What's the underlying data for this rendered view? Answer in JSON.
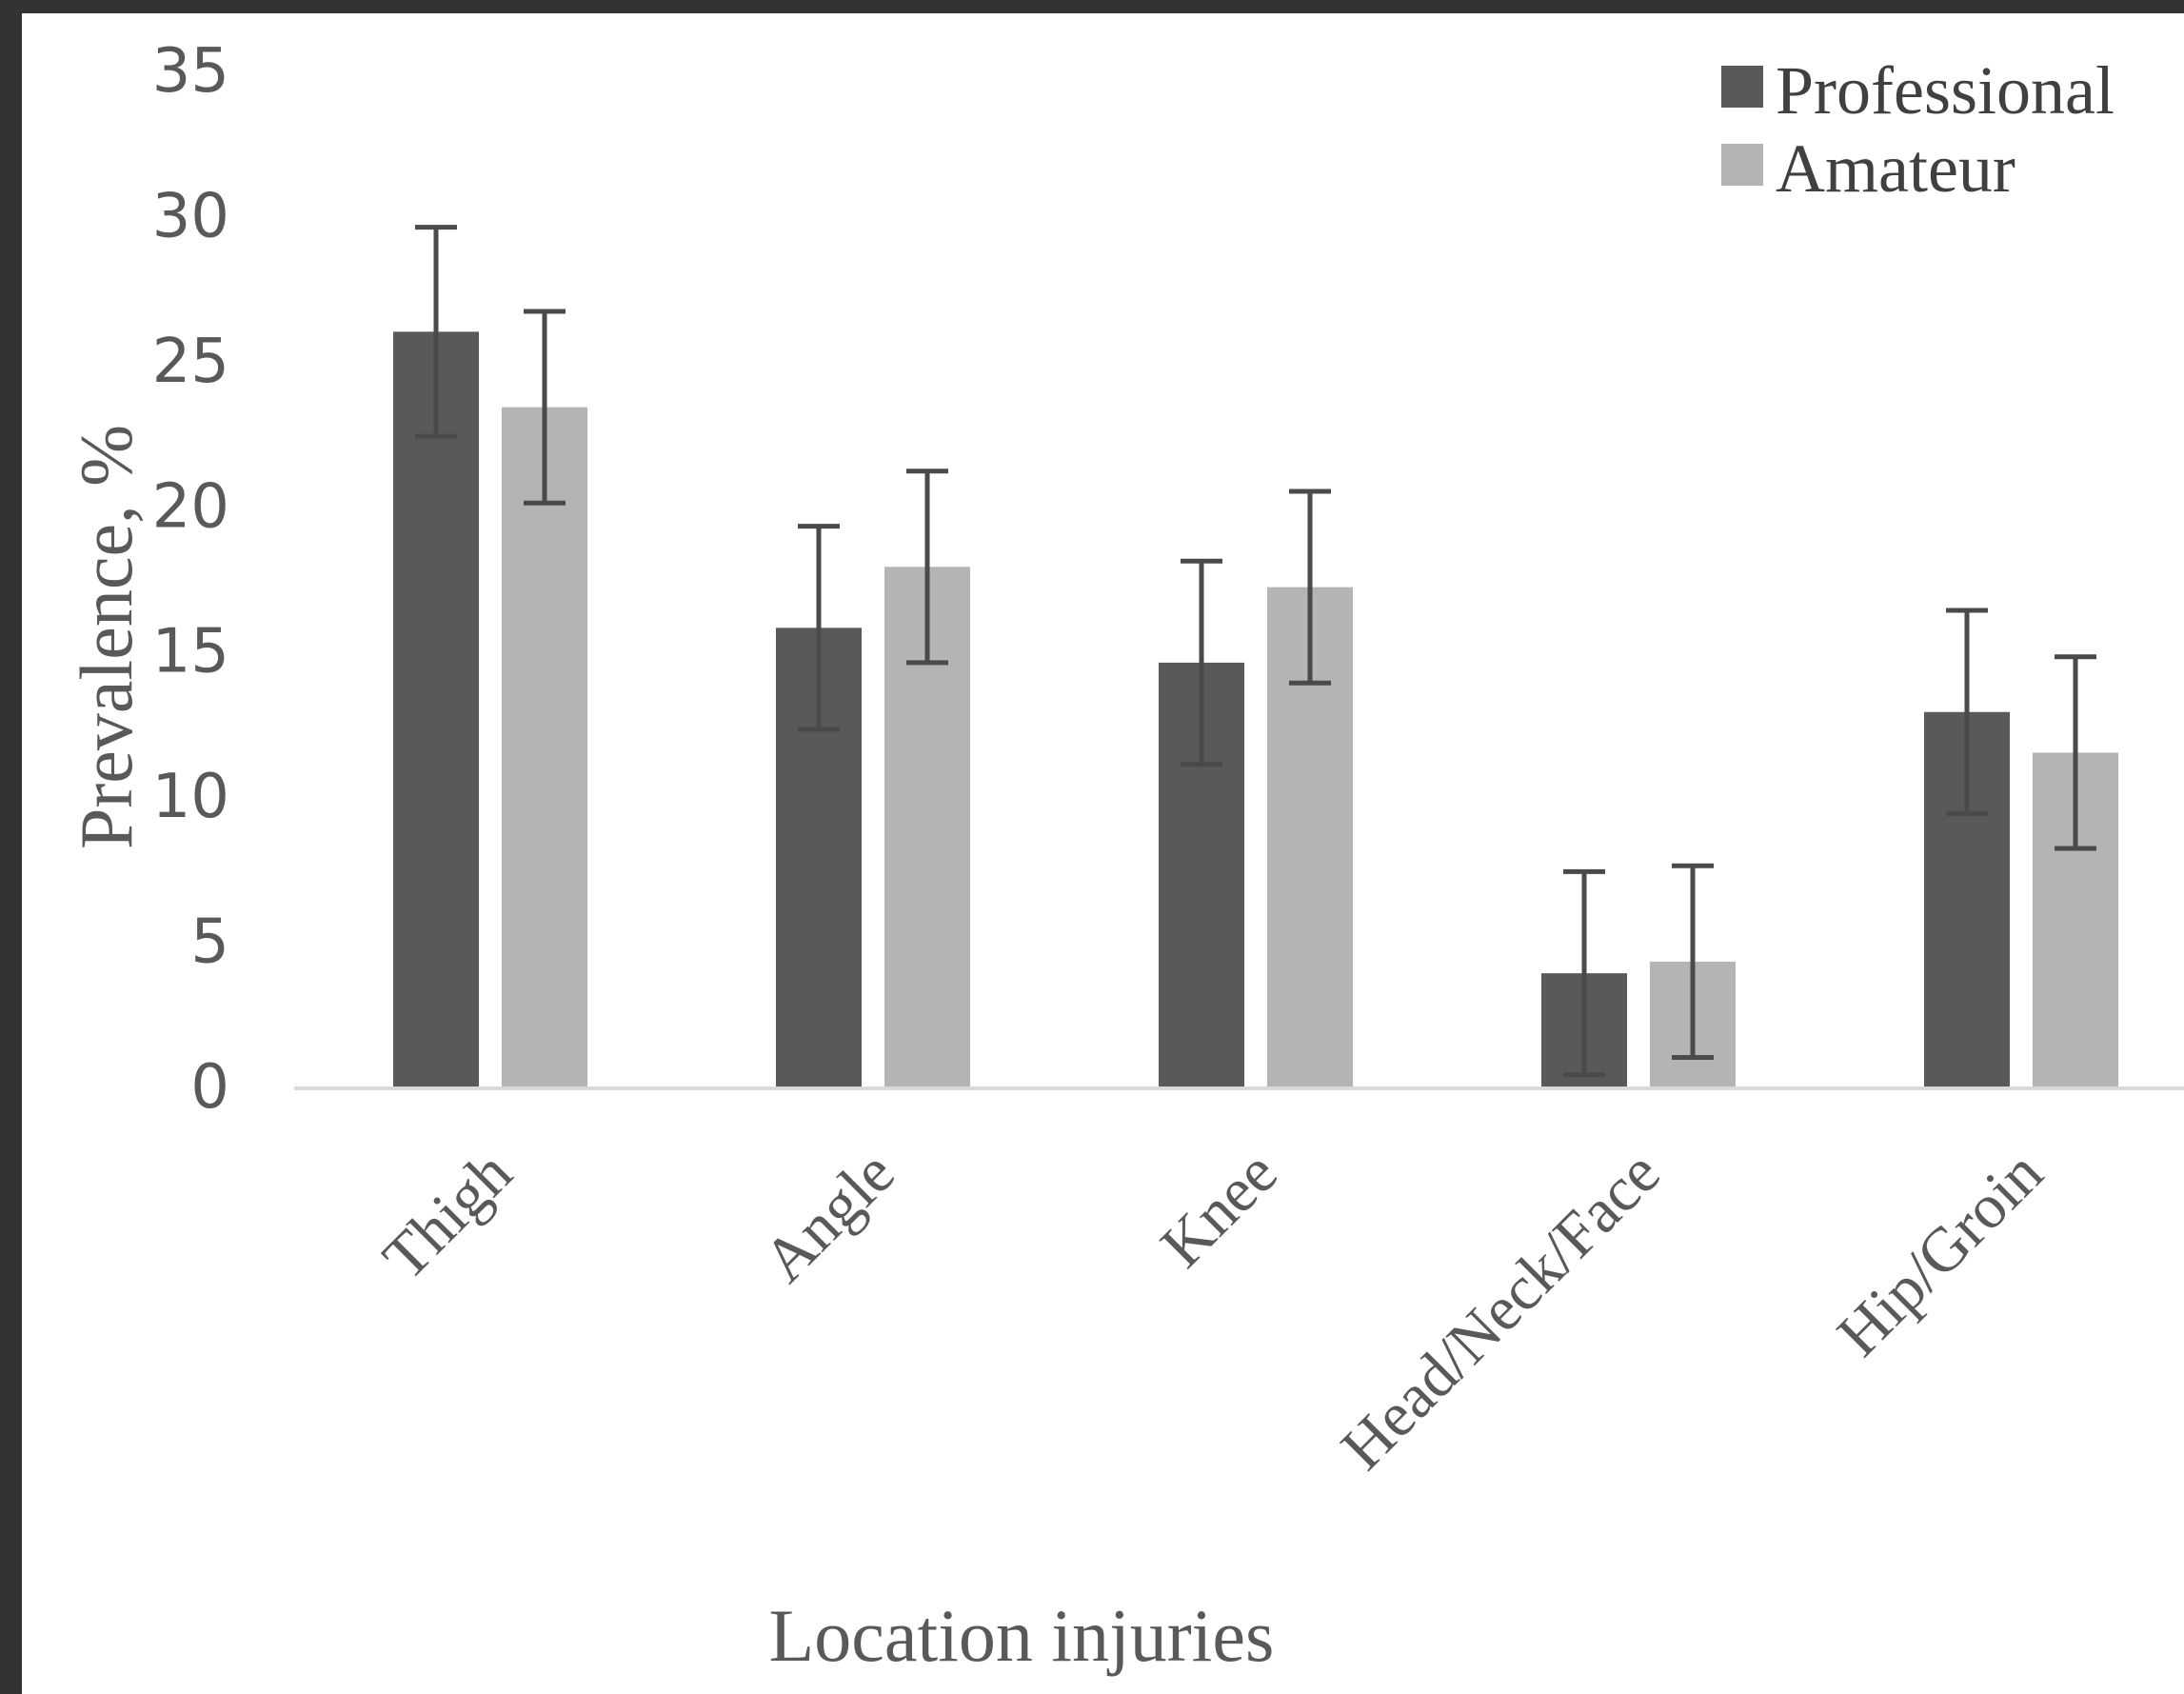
{
  "chart_data": {
    "type": "bar",
    "title": "",
    "xlabel": "Location injuries",
    "ylabel": "Prevalence, %",
    "ylim": [
      0,
      35
    ],
    "yticks": [
      "0",
      "5",
      "10",
      "15",
      "20",
      "25",
      "30",
      "35"
    ],
    "categories": [
      "Thigh",
      "Angle",
      "Knee",
      "Head/Neck/Face",
      "Hip/Groin"
    ],
    "series": [
      {
        "name": "Professional",
        "color": "#595959",
        "values": [
          26.0,
          15.8,
          14.6,
          3.9,
          12.9
        ],
        "error_low": [
          3.6,
          3.5,
          3.5,
          3.5,
          3.5
        ],
        "error_high": [
          3.6,
          3.5,
          3.5,
          3.5,
          3.5
        ]
      },
      {
        "name": "Amateur",
        "color": "#b4b4b4",
        "values": [
          23.4,
          17.9,
          17.2,
          4.3,
          11.5
        ],
        "error_low": [
          3.3,
          3.3,
          3.3,
          3.3,
          3.3
        ],
        "error_high": [
          3.3,
          3.3,
          3.3,
          3.3,
          3.3
        ]
      }
    ],
    "legend": {
      "position": "top-right"
    },
    "grid": false
  }
}
